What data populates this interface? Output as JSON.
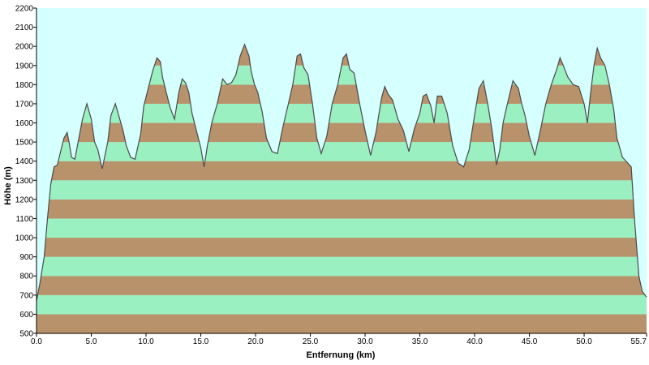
{
  "chart_data": {
    "type": "area",
    "title": "",
    "xlabel": "Entfernung  (km)",
    "ylabel": "Höhe (m)",
    "xlim": [
      0,
      55.7
    ],
    "ylim": [
      500,
      2200
    ],
    "x_ticks": [
      0.0,
      5.0,
      10.0,
      15.0,
      20.0,
      25.0,
      30.0,
      35.0,
      40.0,
      45.0,
      50.0,
      55.7
    ],
    "x_tick_labels": [
      "0.0",
      "5.0",
      "10.0",
      "15.0",
      "20.0",
      "25.0",
      "30.0",
      "35.0",
      "40.0",
      "45.0",
      "50.0",
      "55.7"
    ],
    "y_ticks": [
      500,
      600,
      700,
      800,
      900,
      1000,
      1100,
      1200,
      1300,
      1400,
      1500,
      1600,
      1700,
      1800,
      1900,
      2000,
      2100,
      2200
    ],
    "y_tick_labels": [
      "500",
      "600",
      "700",
      "800",
      "900",
      "1000",
      "1100",
      "1200",
      "1300",
      "1400",
      "1500",
      "1600",
      "1700",
      "1800",
      "1900",
      "2000",
      "2100",
      "2200"
    ],
    "band_step": 100,
    "grid": false,
    "colors": {
      "background": "#d6ffff",
      "band_green": "#9af0c0",
      "band_brown": "#b8926a",
      "profile_line": "#4a4a4a"
    },
    "series": [
      {
        "x": [
          0.0,
          0.3,
          0.7,
          1.0,
          1.3,
          1.6,
          1.9,
          2.2,
          2.5,
          2.8,
          3.0,
          3.2,
          3.5,
          3.8,
          4.2,
          4.6,
          5.0,
          5.3,
          5.6,
          6.0,
          6.5,
          6.8,
          7.2,
          7.6,
          7.9,
          8.2,
          8.6,
          9.0,
          9.5,
          9.8,
          10.2,
          10.6,
          11.0,
          11.3,
          11.5,
          11.8,
          12.2,
          12.6,
          13.0,
          13.3,
          13.6,
          13.9,
          14.2,
          14.6,
          15.0,
          15.3,
          15.6,
          16.0,
          16.5,
          17.0,
          17.4,
          17.8,
          18.2,
          18.6,
          19.0,
          19.4,
          19.6,
          19.9,
          20.2,
          20.6,
          21.0,
          21.5,
          22.0,
          22.5,
          23.0,
          23.4,
          23.8,
          24.1,
          24.4,
          24.8,
          25.2,
          25.6,
          26.0,
          26.5,
          27.0,
          27.5,
          28.0,
          28.3,
          28.6,
          29.0,
          29.5,
          30.0,
          30.5,
          31.0,
          31.5,
          31.8,
          32.1,
          32.5,
          33.0,
          33.5,
          34.0,
          34.5,
          35.0,
          35.3,
          35.6,
          36.0,
          36.3,
          36.6,
          37.0,
          37.5,
          38.0,
          38.5,
          39.0,
          39.5,
          40.0,
          40.4,
          40.8,
          41.2,
          41.6,
          42.0,
          42.3,
          42.6,
          43.0,
          43.5,
          44.0,
          44.3,
          44.6,
          45.0,
          45.5,
          46.0,
          46.5,
          47.0,
          47.5,
          47.8,
          48.1,
          48.5,
          49.0,
          49.5,
          50.0,
          50.3,
          50.6,
          50.9,
          51.2,
          51.5,
          51.9,
          52.3,
          52.7,
          53.0,
          53.5,
          54.0,
          54.3,
          54.6,
          55.0,
          55.3,
          55.7
        ],
        "y": [
          670,
          760,
          900,
          1100,
          1280,
          1370,
          1380,
          1450,
          1520,
          1550,
          1490,
          1420,
          1410,
          1500,
          1620,
          1700,
          1620,
          1500,
          1460,
          1360,
          1500,
          1640,
          1700,
          1620,
          1560,
          1480,
          1420,
          1410,
          1540,
          1690,
          1780,
          1870,
          1940,
          1920,
          1840,
          1770,
          1680,
          1620,
          1760,
          1830,
          1810,
          1760,
          1650,
          1560,
          1470,
          1370,
          1480,
          1600,
          1700,
          1830,
          1800,
          1810,
          1850,
          1950,
          2010,
          1950,
          1870,
          1800,
          1760,
          1660,
          1520,
          1450,
          1440,
          1580,
          1700,
          1800,
          1950,
          1960,
          1890,
          1850,
          1700,
          1520,
          1440,
          1530,
          1700,
          1800,
          1940,
          1960,
          1880,
          1860,
          1700,
          1560,
          1430,
          1550,
          1730,
          1790,
          1750,
          1720,
          1620,
          1560,
          1450,
          1570,
          1650,
          1740,
          1750,
          1690,
          1600,
          1740,
          1740,
          1650,
          1480,
          1390,
          1370,
          1460,
          1640,
          1780,
          1820,
          1700,
          1560,
          1380,
          1460,
          1600,
          1700,
          1820,
          1780,
          1700,
          1640,
          1530,
          1430,
          1560,
          1700,
          1800,
          1880,
          1940,
          1900,
          1840,
          1800,
          1790,
          1700,
          1600,
          1760,
          1900,
          1990,
          1940,
          1900,
          1800,
          1670,
          1520,
          1420,
          1390,
          1370,
          1100,
          800,
          720,
          690
        ]
      }
    ]
  }
}
